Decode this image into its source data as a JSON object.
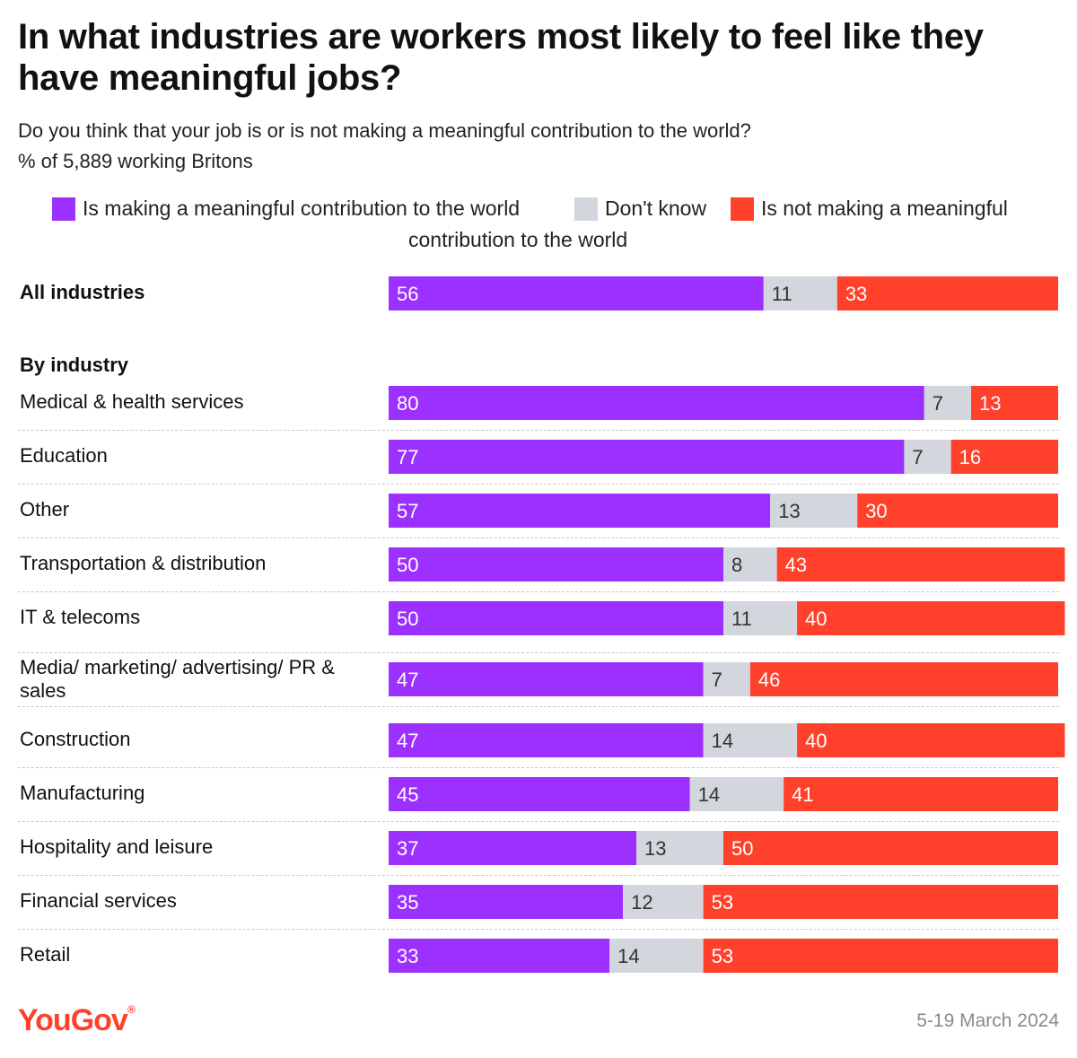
{
  "title": "In what industries are workers most likely to feel like they have meaningful jobs?",
  "subtitle": "Do you think that your job is or is not making a meaningful contribution to the world?",
  "base_note": "% of 5,889 working Britons",
  "legend": {
    "meaningful": "Is making a meaningful contribution to the world",
    "dont_know": "Don't know",
    "not_meaningful_line1": "Is not making a meaningful",
    "not_meaningful_line2": "contribution to the world"
  },
  "section_header": "By industry",
  "footer": {
    "logo": "YouGov",
    "date": "5-19 March 2024"
  },
  "colors": {
    "meaningful": "#9b30ff",
    "dont_know": "#d3d6dd",
    "not_meaningful": "#ff412c"
  },
  "chart_data": {
    "type": "bar",
    "orientation": "horizontal",
    "stacked": true,
    "xlim": [
      0,
      100
    ],
    "series": [
      {
        "name": "Is making a meaningful contribution to the world",
        "values": [
          56,
          80,
          77,
          57,
          50,
          50,
          47,
          47,
          45,
          37,
          35,
          33
        ]
      },
      {
        "name": "Don't know",
        "values": [
          11,
          7,
          7,
          13,
          8,
          11,
          7,
          14,
          14,
          13,
          12,
          14
        ]
      },
      {
        "name": "Is not making a meaningful contribution to the world",
        "values": [
          33,
          13,
          16,
          30,
          43,
          40,
          46,
          40,
          41,
          50,
          53,
          53
        ]
      }
    ],
    "categories": [
      "All industries",
      "Medical & health services",
      "Education",
      "Other",
      "Transportation & distribution",
      "IT & telecoms",
      "Media/ marketing/ advertising/ PR & sales",
      "Construction",
      "Manufacturing",
      "Hospitality and leisure",
      "Financial services",
      "Retail"
    ]
  }
}
